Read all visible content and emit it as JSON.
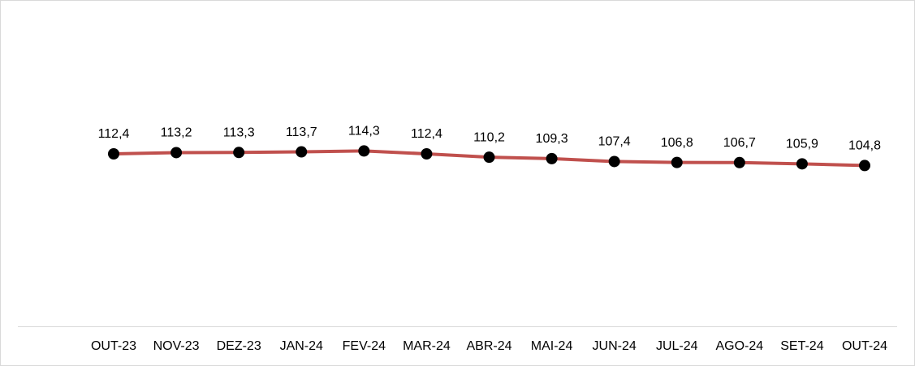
{
  "chart_data": {
    "type": "line",
    "categories": [
      "OUT-23",
      "NOV-23",
      "DEZ-23",
      "JAN-24",
      "FEV-24",
      "MAR-24",
      "ABR-24",
      "MAI-24",
      "JUN-24",
      "JUL-24",
      "AGO-24",
      "SET-24",
      "OUT-24"
    ],
    "series": [
      {
        "color": "#c0504d",
        "marker_color": "#000000",
        "values": [
          112.4,
          113.2,
          113.3,
          113.7,
          114.3,
          112.4,
          110.2,
          109.3,
          107.4,
          106.8,
          106.7,
          105.9,
          104.8
        ],
        "value_labels": [
          "112,4",
          "113,2",
          "113,3",
          "113,7",
          "114,3",
          "112,4",
          "110,2",
          "109,3",
          "107,4",
          "106,8",
          "106,7",
          "105,9",
          "104,8"
        ]
      }
    ],
    "ylim": [
      0,
      200
    ]
  }
}
